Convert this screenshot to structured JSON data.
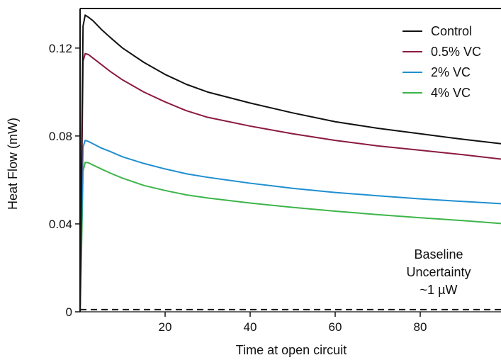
{
  "chart_data": {
    "type": "line",
    "xlabel": "Time at open circuit",
    "ylabel": "Heat Flow (mW)",
    "xlim": [
      0,
      99
    ],
    "ylim": [
      0,
      0.138
    ],
    "xticks": [
      20,
      40,
      60,
      80
    ],
    "yticks": [
      0,
      0.04,
      0.08,
      0.12
    ],
    "ytick_labels": [
      "0",
      "0.04",
      "0.08",
      "0.12"
    ],
    "legend_position": "top-right",
    "grid": false,
    "series": [
      {
        "name": "Control",
        "color": "#111111",
        "x": [
          0,
          0.3,
          0.7,
          1.2,
          2,
          3,
          5,
          7,
          10,
          15,
          20,
          25,
          30,
          40,
          50,
          60,
          70,
          80,
          90,
          99
        ],
        "y": [
          0,
          0.06,
          0.13,
          0.135,
          0.134,
          0.1325,
          0.1285,
          0.125,
          0.12,
          0.1135,
          0.108,
          0.1035,
          0.1,
          0.095,
          0.0905,
          0.0865,
          0.0835,
          0.081,
          0.0785,
          0.0765
        ]
      },
      {
        "name": "0.5% VC",
        "color": "#8b1a3e",
        "x": [
          0,
          0.3,
          0.7,
          1.2,
          2,
          3,
          5,
          7,
          10,
          15,
          20,
          25,
          30,
          40,
          50,
          60,
          70,
          80,
          90,
          99
        ],
        "y": [
          0,
          0.05,
          0.114,
          0.1175,
          0.117,
          0.1155,
          0.1125,
          0.1095,
          0.1055,
          0.1,
          0.0955,
          0.0915,
          0.0885,
          0.0845,
          0.081,
          0.078,
          0.0755,
          0.0735,
          0.0715,
          0.0695
        ]
      },
      {
        "name": "2% VC",
        "color": "#1f8fd0",
        "x": [
          0,
          0.3,
          0.7,
          1.2,
          2,
          3,
          5,
          7,
          10,
          15,
          20,
          25,
          30,
          40,
          50,
          60,
          70,
          80,
          90,
          99
        ],
        "y": [
          0,
          0.035,
          0.075,
          0.078,
          0.0775,
          0.0765,
          0.0745,
          0.073,
          0.0705,
          0.0675,
          0.065,
          0.0628,
          0.0612,
          0.0585,
          0.0562,
          0.0543,
          0.0528,
          0.0514,
          0.0502,
          0.0492
        ]
      },
      {
        "name": "4% VC",
        "color": "#3db54a",
        "x": [
          0,
          0.3,
          0.7,
          1.2,
          2,
          3,
          5,
          7,
          10,
          15,
          20,
          25,
          30,
          40,
          50,
          60,
          70,
          80,
          90,
          99
        ],
        "y": [
          0,
          0.025,
          0.064,
          0.068,
          0.0678,
          0.0668,
          0.065,
          0.0632,
          0.0608,
          0.0575,
          0.0552,
          0.0532,
          0.0518,
          0.0495,
          0.0475,
          0.0458,
          0.0442,
          0.0428,
          0.0415,
          0.0402
        ]
      }
    ],
    "baseline": {
      "y": 0.001,
      "style": "dashed",
      "label_lines": [
        "Baseline",
        "Uncertainty",
        "~1 µW"
      ]
    }
  }
}
